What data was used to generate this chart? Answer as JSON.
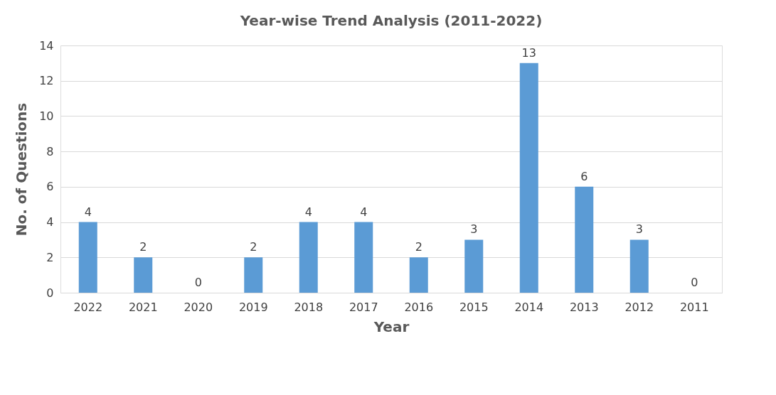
{
  "chart_data": {
    "type": "bar",
    "title": "Year-wise Trend Analysis (2011-2022)",
    "xlabel": "Year",
    "ylabel": "No. of Questions",
    "categories": [
      "2022",
      "2021",
      "2020",
      "2019",
      "2018",
      "2017",
      "2016",
      "2015",
      "2014",
      "2013",
      "2012",
      "2011"
    ],
    "values": [
      4,
      2,
      0,
      2,
      4,
      4,
      2,
      3,
      13,
      6,
      3,
      0
    ],
    "color": "#5b9bd5",
    "ylim": [
      0,
      14
    ],
    "yticks": [
      0,
      2,
      4,
      6,
      8,
      10,
      12,
      14
    ],
    "grid": "y",
    "data_labels": true
  }
}
